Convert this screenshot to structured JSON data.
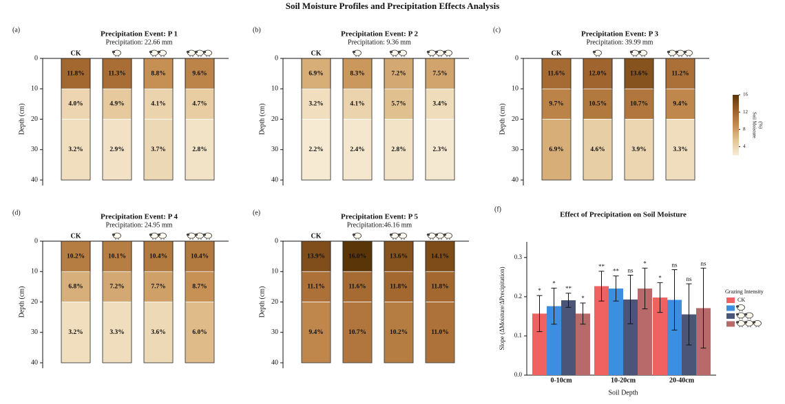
{
  "title": "Soil Moisture Profiles and Precipitation Effects Analysis",
  "colorbar": {
    "label": [
      "Soil Moisture",
      "(%)"
    ],
    "lim": [
      2,
      16
    ],
    "ticks": [
      4,
      8,
      12,
      16
    ],
    "colors": [
      "#f7ecd6",
      "#e3c393",
      "#c48c50",
      "#9a5f28",
      "#5a3508"
    ]
  },
  "chart_data": [
    {
      "type": "soil_profile",
      "panel_label": "(a)",
      "title": "Precipitation Event: P 1",
      "subtitle": "Precipitation: 22.66 mm",
      "categories": [
        "CK",
        null,
        null,
        null
      ],
      "ylabel": "Depth (cm)",
      "ylim": [
        0,
        40
      ],
      "yticks": [
        0,
        10,
        20,
        30,
        40
      ],
      "y_inverted": true,
      "layer_edges": [
        0,
        10,
        20,
        40
      ],
      "values": [
        [
          11.8,
          11.3,
          8.8,
          9.6
        ],
        [
          4.0,
          4.9,
          4.1,
          4.7
        ],
        [
          3.2,
          2.9,
          3.7,
          2.8
        ]
      ],
      "value_labels": [
        [
          "11.8%",
          "11.3%",
          "8.8%",
          "9.6%"
        ],
        [
          "4.0%",
          "4.9%",
          "4.1%",
          "4.7%"
        ],
        [
          "3.2%",
          "2.9%",
          "3.7%",
          "2.8%"
        ]
      ]
    },
    {
      "type": "soil_profile",
      "panel_label": "(b)",
      "title": "Precipitation Event: P 2",
      "subtitle": "Precipitation: 9.36 mm",
      "categories": [
        "CK",
        null,
        null,
        null
      ],
      "ylabel": "Depth (cm)",
      "ylim": [
        0,
        40
      ],
      "yticks": [
        0,
        10,
        20,
        30,
        40
      ],
      "y_inverted": true,
      "layer_edges": [
        0,
        10,
        20,
        40
      ],
      "values": [
        [
          6.9,
          8.3,
          7.2,
          7.5
        ],
        [
          3.2,
          4.1,
          5.7,
          3.4
        ],
        [
          2.2,
          2.4,
          2.8,
          2.3
        ]
      ],
      "value_labels": [
        [
          "6.9%",
          "8.3%",
          "7.2%",
          "7.5%"
        ],
        [
          "3.2%",
          "4.1%",
          "5.7%",
          "3.4%"
        ],
        [
          "2.2%",
          "2.4%",
          "2.8%",
          "2.3%"
        ]
      ]
    },
    {
      "type": "soil_profile",
      "panel_label": "(c)",
      "title": "Precipitation Event: P 3",
      "subtitle": "Precipitation: 39.99 mm",
      "categories": [
        "CK",
        null,
        null,
        null
      ],
      "ylabel": "Depth (cm)",
      "ylim": [
        0,
        40
      ],
      "yticks": [
        0,
        10,
        20,
        30,
        40
      ],
      "y_inverted": true,
      "layer_edges": [
        0,
        10,
        20,
        40
      ],
      "values": [
        [
          11.6,
          12.0,
          13.6,
          11.2
        ],
        [
          9.7,
          10.5,
          10.7,
          9.4
        ],
        [
          6.9,
          4.6,
          3.9,
          3.3
        ]
      ],
      "value_labels": [
        [
          "11.6%",
          "12.0%",
          "13.6%",
          "11.2%"
        ],
        [
          "9.7%",
          "10.5%",
          "10.7%",
          "9.4%"
        ],
        [
          "6.9%",
          "4.6%",
          "3.9%",
          "3.3%"
        ]
      ]
    },
    {
      "type": "soil_profile",
      "panel_label": "(d)",
      "title": "Precipitation Event: P 4",
      "subtitle": "Precipitation: 24.95 mm",
      "categories": [
        "CK",
        null,
        null,
        null
      ],
      "ylabel": "Depth (cm)",
      "ylim": [
        0,
        40
      ],
      "yticks": [
        0,
        10,
        20,
        30,
        40
      ],
      "y_inverted": true,
      "layer_edges": [
        0,
        10,
        20,
        40
      ],
      "values": [
        [
          10.2,
          10.1,
          10.4,
          10.4
        ],
        [
          6.8,
          7.2,
          7.7,
          8.7
        ],
        [
          3.2,
          3.3,
          3.6,
          6.0
        ]
      ],
      "value_labels": [
        [
          "10.2%",
          "10.1%",
          "10.4%",
          "10.4%"
        ],
        [
          "6.8%",
          "7.2%",
          "7.7%",
          "8.7%"
        ],
        [
          "3.2%",
          "3.3%",
          "3.6%",
          "6.0%"
        ]
      ]
    },
    {
      "type": "soil_profile",
      "panel_label": "(e)",
      "title": "Precipitation Event: P 5",
      "subtitle": "Precipitation:46.16 mm",
      "categories": [
        "CK",
        null,
        null,
        null
      ],
      "ylabel": "Depth (cm)",
      "ylim": [
        0,
        40
      ],
      "yticks": [
        0,
        10,
        20,
        30,
        40
      ],
      "y_inverted": true,
      "layer_edges": [
        0,
        10,
        20,
        40
      ],
      "values": [
        [
          13.9,
          16.0,
          13.6,
          14.1
        ],
        [
          11.1,
          11.6,
          11.8,
          11.8
        ],
        [
          9.4,
          10.7,
          10.2,
          11.0
        ]
      ],
      "value_labels": [
        [
          "13.9%",
          "16.0%",
          "13.6%",
          "14.1%"
        ],
        [
          "11.1%",
          "11.6%",
          "11.8%",
          "11.8%"
        ],
        [
          "9.4%",
          "10.7%",
          "10.2%",
          "11.0%"
        ]
      ]
    },
    {
      "type": "bar",
      "panel_label": "(f)",
      "title": "Effect of Precipitation on Soil Moisture",
      "xlabel": "Soil Depth",
      "ylabel": "Slope (ΔMoisture/ΔPrecipitation)",
      "categories": [
        "0-10cm",
        "10-20cm",
        "20-40cm"
      ],
      "ylim": [
        0,
        0.34
      ],
      "yticks": [
        {
          "value": 0,
          "label": "0.0"
        },
        0.1,
        0.2,
        0.3
      ],
      "legend_title": "Grazing Intensity",
      "legend": "right",
      "series": [
        {
          "name": "CK",
          "color": "#f06262",
          "values": [
            0.157,
            0.227,
            0.198
          ],
          "errors": [
            0.046,
            0.038,
            0.038
          ],
          "significance": [
            "*",
            "**",
            "*"
          ]
        },
        {
          "name": null,
          "color": "#3b8ee0",
          "values": [
            0.176,
            0.221,
            0.192
          ],
          "errors": [
            0.046,
            0.032,
            0.077
          ],
          "significance": [
            "*",
            "**",
            "ns"
          ]
        },
        {
          "name": null,
          "color": "#4b5578",
          "values": [
            0.191,
            0.193,
            0.155
          ],
          "errors": [
            0.018,
            0.062,
            0.078
          ],
          "significance": [
            "**",
            "ns",
            "ns"
          ]
        },
        {
          "name": null,
          "color": "#b86a6a",
          "values": [
            0.157,
            0.221,
            0.171
          ],
          "errors": [
            0.027,
            0.052,
            0.102
          ],
          "significance": [
            "*",
            "*",
            "ns"
          ]
        }
      ]
    }
  ]
}
